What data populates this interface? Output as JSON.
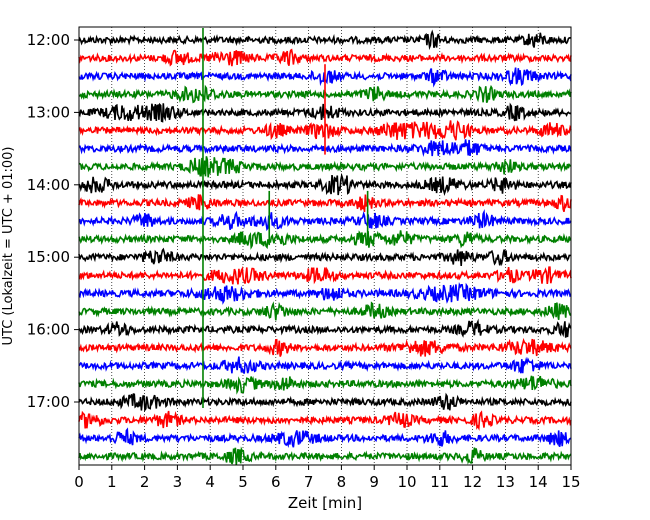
{
  "chart_data": {
    "type": "line",
    "title": "",
    "xlabel": "Zeit  [min]",
    "ylabel": "UTC (Lokalzeit = UTC + 01:00)",
    "xlim": [
      0,
      15
    ],
    "x_ticks": [
      "0",
      "1",
      "2",
      "3",
      "4",
      "5",
      "6",
      "7",
      "8",
      "9",
      "10",
      "11",
      "12",
      "13",
      "14",
      "15"
    ],
    "y_tick_labels": [
      "12:00",
      "13:00",
      "14:00",
      "15:00",
      "16:00",
      "17:00"
    ],
    "grid": "vertical dotted at each minute",
    "rows": [
      {
        "start": "12:00",
        "color": "#000000",
        "events": [
          [
            10.8,
            0.25
          ],
          [
            13.9,
            0.3
          ]
        ]
      },
      {
        "start": "12:15",
        "color": "#ff0000",
        "events": [
          [
            3.0,
            0.35
          ],
          [
            4.6,
            0.55
          ],
          [
            6.4,
            0.3
          ]
        ]
      },
      {
        "start": "12:30",
        "color": "#0000ff",
        "events": [
          [
            7.5,
            0.35
          ],
          [
            10.9,
            0.3
          ],
          [
            13.4,
            0.5
          ]
        ]
      },
      {
        "start": "12:45",
        "color": "#008000",
        "events": [
          [
            3.6,
            0.6
          ],
          [
            9.0,
            0.3
          ],
          [
            12.4,
            0.3
          ]
        ]
      },
      {
        "start": "13:00",
        "color": "#000000",
        "events": [
          [
            1.4,
            0.6
          ],
          [
            2.5,
            0.55
          ],
          [
            7.5,
            0.4
          ],
          [
            13.3,
            0.3
          ]
        ]
      },
      {
        "start": "13:15",
        "color": "#ff0000",
        "events": [
          [
            6.0,
            0.3
          ],
          [
            7.4,
            0.45
          ],
          [
            9.6,
            0.45
          ],
          [
            10.6,
            0.8
          ],
          [
            11.5,
            0.4
          ],
          [
            14.4,
            0.35
          ]
        ]
      },
      {
        "start": "13:30",
        "color": "#0000ff",
        "events": [
          [
            11.0,
            0.6
          ],
          [
            11.9,
            0.35
          ]
        ]
      },
      {
        "start": "13:45",
        "color": "#008000",
        "events": [
          [
            3.7,
            0.4
          ],
          [
            4.4,
            0.6
          ],
          [
            13.0,
            0.3
          ]
        ]
      },
      {
        "start": "14:00",
        "color": "#000000",
        "events": [
          [
            0.5,
            0.45
          ],
          [
            7.7,
            0.3
          ],
          [
            8.1,
            0.3
          ],
          [
            11.1,
            0.5
          ],
          [
            12.9,
            0.35
          ]
        ]
      },
      {
        "start": "14:15",
        "color": "#ff0000",
        "events": [
          [
            3.7,
            0.35
          ],
          [
            8.7,
            0.3
          ],
          [
            14.8,
            0.3
          ]
        ]
      },
      {
        "start": "14:30",
        "color": "#0000ff",
        "events": [
          [
            2.0,
            0.3
          ],
          [
            4.6,
            0.4
          ],
          [
            5.8,
            0.5
          ],
          [
            8.9,
            0.4
          ],
          [
            12.3,
            0.35
          ]
        ]
      },
      {
        "start": "14:45",
        "color": "#008000",
        "events": [
          [
            5.1,
            0.3
          ],
          [
            5.9,
            0.5
          ],
          [
            8.8,
            0.4
          ],
          [
            9.8,
            0.35
          ],
          [
            11.8,
            0.3
          ]
        ]
      },
      {
        "start": "15:00",
        "color": "#000000",
        "events": [
          [
            2.4,
            0.4
          ],
          [
            11.6,
            0.35
          ],
          [
            12.8,
            0.3
          ]
        ]
      },
      {
        "start": "15:15",
        "color": "#ff0000",
        "events": [
          [
            4.8,
            0.8
          ],
          [
            7.3,
            0.45
          ],
          [
            13.1,
            0.3
          ],
          [
            14.2,
            0.4
          ]
        ]
      },
      {
        "start": "15:30",
        "color": "#0000ff",
        "events": [
          [
            4.4,
            0.8
          ],
          [
            7.7,
            0.35
          ],
          [
            11.4,
            1.0
          ]
        ]
      },
      {
        "start": "15:45",
        "color": "#008000",
        "events": [
          [
            6.0,
            0.35
          ],
          [
            9.0,
            0.35
          ],
          [
            14.6,
            0.35
          ]
        ]
      },
      {
        "start": "16:00",
        "color": "#000000",
        "events": [
          [
            1.2,
            0.3
          ],
          [
            12.0,
            0.4
          ],
          [
            14.8,
            0.3
          ]
        ]
      },
      {
        "start": "16:15",
        "color": "#ff0000",
        "events": [
          [
            6.1,
            0.3
          ],
          [
            10.5,
            0.7
          ],
          [
            13.7,
            0.7
          ]
        ]
      },
      {
        "start": "16:30",
        "color": "#0000ff",
        "events": [
          [
            4.9,
            0.5
          ],
          [
            13.6,
            0.4
          ]
        ]
      },
      {
        "start": "16:45",
        "color": "#008000",
        "events": [
          [
            5.0,
            0.45
          ],
          [
            6.3,
            0.3
          ],
          [
            13.9,
            0.5
          ]
        ]
      },
      {
        "start": "17:00",
        "color": "#000000",
        "events": [
          [
            1.9,
            0.6
          ],
          [
            11.2,
            0.35
          ]
        ]
      },
      {
        "start": "17:15",
        "color": "#ff0000",
        "events": [
          [
            0.3,
            0.35
          ],
          [
            2.7,
            0.35
          ],
          [
            9.8,
            0.35
          ],
          [
            12.3,
            0.3
          ]
        ]
      },
      {
        "start": "17:30",
        "color": "#0000ff",
        "events": [
          [
            1.4,
            0.35
          ],
          [
            6.6,
            0.6
          ],
          [
            11.0,
            0.35
          ],
          [
            14.6,
            0.3
          ]
        ]
      },
      {
        "start": "17:45",
        "color": "#008000",
        "events": [
          [
            4.8,
            0.35
          ],
          [
            12.0,
            0.3
          ]
        ]
      }
    ],
    "spikes": [
      {
        "x": 3.78,
        "from_row": 0,
        "to_row": 20,
        "color": "#008000"
      },
      {
        "x": 7.5,
        "from_row": 2,
        "to_row": 6,
        "color": "#ff0000"
      },
      {
        "x": 5.8,
        "from_row": 9,
        "to_row": 11,
        "color": "#008000"
      },
      {
        "x": 8.8,
        "from_row": 9,
        "to_row": 11,
        "color": "#008000"
      }
    ]
  }
}
